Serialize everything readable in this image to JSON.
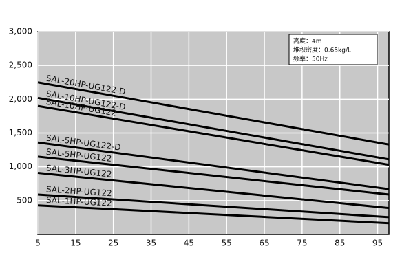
{
  "chart_data": {
    "type": "line",
    "x": [
      5,
      98
    ],
    "series": [
      {
        "name": "SAL-20HP-UG122-D",
        "color": "#000000",
        "values": [
          2250,
          1330
        ]
      },
      {
        "name": "SAL-10HP-UG122-D",
        "color": "#000000",
        "values": [
          2020,
          1110
        ]
      },
      {
        "name": "SAL-10HP-UG122",
        "color": "#000000",
        "values": [
          1900,
          1030
        ]
      },
      {
        "name": "SAL-5HP-UG122-D",
        "color": "#000000",
        "values": [
          1360,
          670
        ]
      },
      {
        "name": "SAL-5HP-UG122",
        "color": "#000000",
        "values": [
          1150,
          590
        ]
      },
      {
        "name": "SAL-3HP-UG122",
        "color": "#000000",
        "values": [
          910,
          390
        ]
      },
      {
        "name": "SAL-2HP-UG122",
        "color": "#000000",
        "values": [
          590,
          255
        ]
      },
      {
        "name": "SAL-1HP-UG122",
        "color": "#000000",
        "values": [
          430,
          165
        ]
      }
    ],
    "xlim": [
      5,
      98
    ],
    "xticks": [
      5,
      15,
      25,
      35,
      45,
      55,
      65,
      75,
      85,
      95
    ],
    "ylim": [
      0,
      3000
    ],
    "yticks": [
      500,
      {
        "value": 1000,
        "label": "1,000"
      },
      {
        "value": 1500,
        "label": "1,500"
      },
      {
        "value": 2000,
        "label": "2,000"
      },
      {
        "value": 2500,
        "label": "2,500"
      },
      {
        "value": 3000,
        "label": "3,000"
      }
    ],
    "grid": true,
    "plot_background": "#c8c8c8",
    "annotations": [
      "高度：4m",
      "堆积密度：0.65kg/L",
      "频率：50Hz"
    ]
  }
}
